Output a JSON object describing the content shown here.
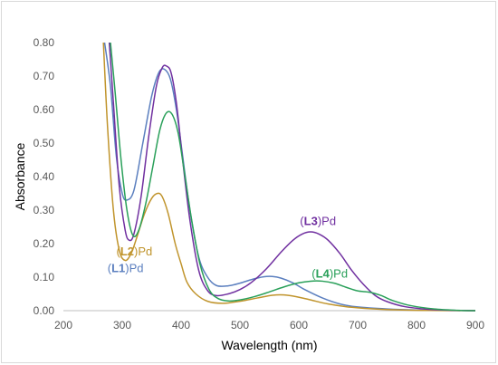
{
  "chart_data": {
    "type": "line",
    "title": "",
    "xlabel": "Wavelength (nm)",
    "ylabel": "Absorbance",
    "xlim": [
      200,
      900
    ],
    "ylim": [
      0,
      0.8
    ],
    "xticks": [
      "200",
      "300",
      "400",
      "500",
      "600",
      "700",
      "800",
      "900"
    ],
    "yticks": [
      "0.00",
      "0.10",
      "0.20",
      "0.30",
      "0.40",
      "0.50",
      "0.60",
      "0.70",
      "0.80"
    ],
    "grid": false,
    "legend": "inline labels",
    "series": [
      {
        "name": "(L1)Pd",
        "label_open": "(",
        "label_bold": "L1",
        "label_rest": ")Pd",
        "color": "#5b7fbf",
        "label_at": [
          275,
          0.115
        ],
        "points": [
          [
            270,
            0.8
          ],
          [
            280,
            0.67
          ],
          [
            290,
            0.46
          ],
          [
            300,
            0.35
          ],
          [
            308,
            0.33
          ],
          [
            320,
            0.36
          ],
          [
            335,
            0.5
          ],
          [
            350,
            0.64
          ],
          [
            362,
            0.71
          ],
          [
            372,
            0.72
          ],
          [
            382,
            0.69
          ],
          [
            392,
            0.6
          ],
          [
            402,
            0.47
          ],
          [
            415,
            0.3
          ],
          [
            430,
            0.16
          ],
          [
            445,
            0.1
          ],
          [
            460,
            0.075
          ],
          [
            480,
            0.074
          ],
          [
            500,
            0.082
          ],
          [
            520,
            0.093
          ],
          [
            540,
            0.101
          ],
          [
            555,
            0.102
          ],
          [
            570,
            0.097
          ],
          [
            590,
            0.083
          ],
          [
            610,
            0.063
          ],
          [
            640,
            0.038
          ],
          [
            670,
            0.02
          ],
          [
            700,
            0.011
          ],
          [
            750,
            0.005
          ],
          [
            800,
            0.002
          ],
          [
            850,
            0.001
          ],
          [
            900,
            0
          ]
        ]
      },
      {
        "name": "(L2)Pd",
        "label_open": "(",
        "label_bold": "L2",
        "label_rest": ")Pd",
        "color": "#c0942c",
        "label_at": [
          290,
          0.165
        ],
        "points": [
          [
            268,
            0.8
          ],
          [
            275,
            0.55
          ],
          [
            285,
            0.3
          ],
          [
            295,
            0.18
          ],
          [
            305,
            0.15
          ],
          [
            315,
            0.17
          ],
          [
            325,
            0.22
          ],
          [
            338,
            0.29
          ],
          [
            350,
            0.335
          ],
          [
            360,
            0.35
          ],
          [
            368,
            0.34
          ],
          [
            378,
            0.29
          ],
          [
            390,
            0.2
          ],
          [
            400,
            0.14
          ],
          [
            410,
            0.085
          ],
          [
            425,
            0.05
          ],
          [
            445,
            0.028
          ],
          [
            470,
            0.022
          ],
          [
            500,
            0.028
          ],
          [
            530,
            0.038
          ],
          [
            555,
            0.046
          ],
          [
            575,
            0.047
          ],
          [
            595,
            0.042
          ],
          [
            620,
            0.032
          ],
          [
            650,
            0.02
          ],
          [
            690,
            0.01
          ],
          [
            740,
            0.004
          ],
          [
            800,
            0.001
          ],
          [
            900,
            0
          ]
        ]
      },
      {
        "name": "(L3)Pd",
        "label_open": "(",
        "label_bold": "L3",
        "label_rest": ")Pd",
        "color": "#7030a0",
        "label_at": [
          602,
          0.255
        ],
        "points": [
          [
            278,
            0.8
          ],
          [
            285,
            0.62
          ],
          [
            295,
            0.37
          ],
          [
            305,
            0.24
          ],
          [
            312,
            0.21
          ],
          [
            320,
            0.23
          ],
          [
            332,
            0.34
          ],
          [
            345,
            0.52
          ],
          [
            358,
            0.67
          ],
          [
            368,
            0.725
          ],
          [
            375,
            0.73
          ],
          [
            383,
            0.71
          ],
          [
            392,
            0.62
          ],
          [
            402,
            0.46
          ],
          [
            415,
            0.27
          ],
          [
            430,
            0.12
          ],
          [
            445,
            0.06
          ],
          [
            460,
            0.045
          ],
          [
            480,
            0.05
          ],
          [
            500,
            0.063
          ],
          [
            520,
            0.085
          ],
          [
            545,
            0.125
          ],
          [
            570,
            0.175
          ],
          [
            590,
            0.21
          ],
          [
            605,
            0.228
          ],
          [
            620,
            0.235
          ],
          [
            635,
            0.228
          ],
          [
            650,
            0.21
          ],
          [
            670,
            0.17
          ],
          [
            690,
            0.12
          ],
          [
            710,
            0.078
          ],
          [
            730,
            0.045
          ],
          [
            750,
            0.027
          ],
          [
            780,
            0.012
          ],
          [
            820,
            0.004
          ],
          [
            860,
            0.001
          ],
          [
            900,
            0
          ]
        ]
      },
      {
        "name": "(L4)Pd",
        "label_open": "(",
        "label_bold": "L4",
        "label_rest": ")Pd",
        "color": "#2aa05a",
        "label_at": [
          622,
          0.098
        ],
        "points": [
          [
            280,
            0.8
          ],
          [
            288,
            0.65
          ],
          [
            298,
            0.45
          ],
          [
            308,
            0.3
          ],
          [
            318,
            0.225
          ],
          [
            328,
            0.24
          ],
          [
            340,
            0.32
          ],
          [
            352,
            0.43
          ],
          [
            364,
            0.54
          ],
          [
            375,
            0.59
          ],
          [
            385,
            0.585
          ],
          [
            395,
            0.53
          ],
          [
            405,
            0.42
          ],
          [
            418,
            0.27
          ],
          [
            432,
            0.14
          ],
          [
            447,
            0.065
          ],
          [
            462,
            0.037
          ],
          [
            480,
            0.029
          ],
          [
            500,
            0.032
          ],
          [
            525,
            0.042
          ],
          [
            550,
            0.056
          ],
          [
            575,
            0.071
          ],
          [
            600,
            0.083
          ],
          [
            620,
            0.088
          ],
          [
            640,
            0.088
          ],
          [
            660,
            0.082
          ],
          [
            680,
            0.07
          ],
          [
            700,
            0.059
          ],
          [
            720,
            0.055
          ],
          [
            740,
            0.045
          ],
          [
            760,
            0.03
          ],
          [
            790,
            0.015
          ],
          [
            830,
            0.005
          ],
          [
            870,
            0.001
          ],
          [
            900,
            0
          ]
        ]
      }
    ]
  }
}
